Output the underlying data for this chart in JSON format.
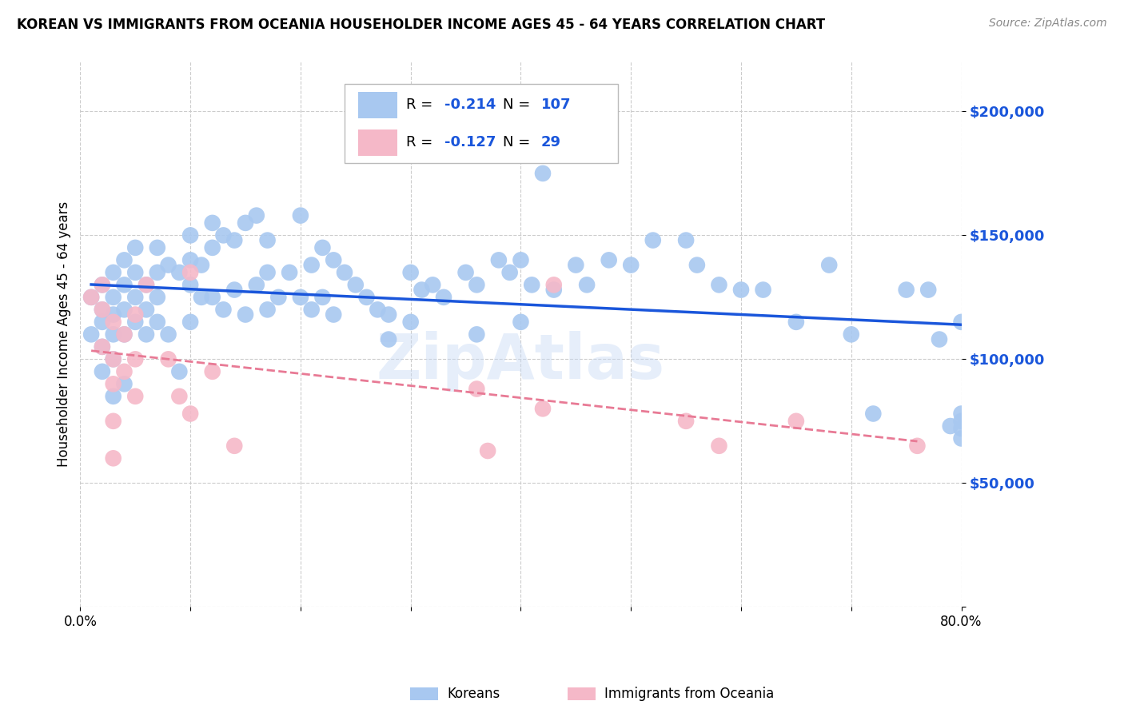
{
  "title": "KOREAN VS IMMIGRANTS FROM OCEANIA HOUSEHOLDER INCOME AGES 45 - 64 YEARS CORRELATION CHART",
  "source": "Source: ZipAtlas.com",
  "ylabel": "Householder Income Ages 45 - 64 years",
  "xlim": [
    0.0,
    0.8
  ],
  "ylim": [
    0,
    220000
  ],
  "yticks": [
    0,
    50000,
    100000,
    150000,
    200000
  ],
  "ytick_labels": [
    "",
    "$50,000",
    "$100,000",
    "$150,000",
    "$200,000"
  ],
  "xticks": [
    0.0,
    0.1,
    0.2,
    0.3,
    0.4,
    0.5,
    0.6,
    0.7,
    0.8
  ],
  "xtick_labels": [
    "0.0%",
    "",
    "",
    "",
    "",
    "",
    "",
    "",
    "80.0%"
  ],
  "korean_color": "#a8c8f0",
  "oceania_color": "#f5b8c8",
  "trend_korean_color": "#1a56db",
  "trend_oceania_color": "#e87a95",
  "legend_korean_R": "-0.214",
  "legend_korean_N": "107",
  "legend_oceania_R": "-0.127",
  "legend_oceania_N": "29",
  "legend_label_korean": "Koreans",
  "legend_label_oceania": "Immigrants from Oceania",
  "watermark": "ZipAtlas",
  "korean_x": [
    0.01,
    0.01,
    0.02,
    0.02,
    0.02,
    0.02,
    0.02,
    0.03,
    0.03,
    0.03,
    0.03,
    0.03,
    0.03,
    0.04,
    0.04,
    0.04,
    0.04,
    0.04,
    0.05,
    0.05,
    0.05,
    0.05,
    0.06,
    0.06,
    0.06,
    0.07,
    0.07,
    0.07,
    0.07,
    0.08,
    0.08,
    0.09,
    0.09,
    0.1,
    0.1,
    0.1,
    0.1,
    0.11,
    0.11,
    0.12,
    0.12,
    0.12,
    0.13,
    0.13,
    0.14,
    0.14,
    0.15,
    0.15,
    0.16,
    0.16,
    0.17,
    0.17,
    0.17,
    0.18,
    0.19,
    0.2,
    0.2,
    0.21,
    0.21,
    0.22,
    0.22,
    0.23,
    0.23,
    0.24,
    0.25,
    0.26,
    0.27,
    0.28,
    0.28,
    0.3,
    0.3,
    0.31,
    0.32,
    0.33,
    0.35,
    0.36,
    0.36,
    0.38,
    0.39,
    0.4,
    0.4,
    0.41,
    0.42,
    0.43,
    0.45,
    0.46,
    0.48,
    0.5,
    0.52,
    0.55,
    0.56,
    0.58,
    0.6,
    0.62,
    0.65,
    0.68,
    0.7,
    0.72,
    0.75,
    0.77,
    0.78,
    0.79,
    0.8,
    0.8,
    0.8,
    0.8,
    0.8
  ],
  "korean_y": [
    125000,
    110000,
    130000,
    120000,
    115000,
    105000,
    95000,
    135000,
    125000,
    118000,
    110000,
    100000,
    85000,
    140000,
    130000,
    120000,
    110000,
    90000,
    145000,
    135000,
    125000,
    115000,
    130000,
    120000,
    110000,
    145000,
    135000,
    125000,
    115000,
    138000,
    110000,
    135000,
    95000,
    150000,
    140000,
    130000,
    115000,
    138000,
    125000,
    155000,
    145000,
    125000,
    150000,
    120000,
    148000,
    128000,
    155000,
    118000,
    158000,
    130000,
    148000,
    135000,
    120000,
    125000,
    135000,
    158000,
    125000,
    138000,
    120000,
    145000,
    125000,
    140000,
    118000,
    135000,
    130000,
    125000,
    120000,
    118000,
    108000,
    135000,
    115000,
    128000,
    130000,
    125000,
    135000,
    130000,
    110000,
    140000,
    135000,
    140000,
    115000,
    130000,
    175000,
    128000,
    138000,
    130000,
    140000,
    138000,
    148000,
    148000,
    138000,
    130000,
    128000,
    128000,
    115000,
    138000,
    110000,
    78000,
    128000,
    128000,
    108000,
    73000,
    115000,
    78000,
    68000,
    75000,
    72000
  ],
  "oceania_x": [
    0.01,
    0.02,
    0.02,
    0.02,
    0.03,
    0.03,
    0.03,
    0.03,
    0.03,
    0.04,
    0.04,
    0.05,
    0.05,
    0.05,
    0.06,
    0.08,
    0.09,
    0.1,
    0.1,
    0.12,
    0.14,
    0.36,
    0.37,
    0.42,
    0.43,
    0.55,
    0.58,
    0.65,
    0.76
  ],
  "oceania_y": [
    125000,
    130000,
    120000,
    105000,
    115000,
    100000,
    90000,
    75000,
    60000,
    110000,
    95000,
    118000,
    100000,
    85000,
    130000,
    100000,
    85000,
    135000,
    78000,
    95000,
    65000,
    88000,
    63000,
    80000,
    130000,
    75000,
    65000,
    75000,
    65000
  ]
}
